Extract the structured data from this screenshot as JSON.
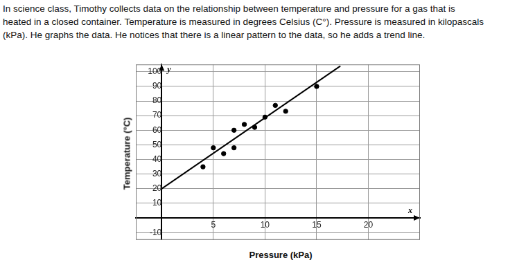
{
  "intro_lines": [
    "In science class, Timothy collects data on the relationship between temperature and pressure for a gas that is",
    "heated in a closed container. Temperature is measured in degrees Celsius (C°). Pressure is measured in kilopascals",
    "(kPa). He graphs the data. He notices that there is a linear pattern to the data, so he adds a trend line."
  ],
  "chart_data": {
    "type": "scatter",
    "x_label": "Pressure (kPa)",
    "y_label": "Temperature (°C)",
    "annotations": [
      "y",
      "x"
    ],
    "series": [
      {
        "type": "scatter",
        "marker": "circle",
        "color": "#000000",
        "x": [
          4,
          5,
          6,
          7,
          7,
          8,
          9,
          10,
          11,
          12,
          15
        ],
        "values": [
          35,
          48,
          44,
          48,
          60,
          64,
          62,
          69,
          77,
          73,
          90
        ]
      },
      {
        "type": "line",
        "line_style": "solid",
        "color": "#000000",
        "x": [
          0,
          17.3
        ],
        "values": [
          20,
          104
        ]
      }
    ],
    "xlim": [
      -2.5,
      25
    ],
    "ylim": [
      -15,
      105
    ],
    "xticks": [
      5,
      10,
      15,
      20
    ],
    "yticks": [
      -10,
      10,
      20,
      30,
      40,
      50,
      60,
      70,
      80,
      90,
      100
    ],
    "grid": true
  }
}
